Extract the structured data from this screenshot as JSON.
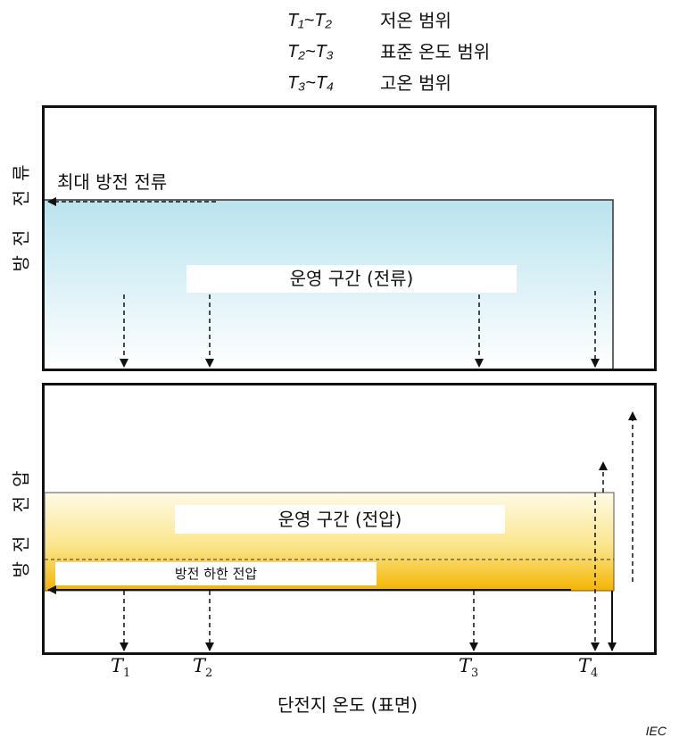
{
  "legend": [
    {
      "range": "T₁~T₂",
      "label": "저온 범위"
    },
    {
      "range": "T₂~T₃",
      "label": "표준 온도 범위"
    },
    {
      "range": "T₃~T₄",
      "label": "고온 범위"
    }
  ],
  "top_panel": {
    "ylabel": "방전 전류",
    "max_label": "최대 방전 전류",
    "region_label": "운영 구간 (전류)"
  },
  "bottom_panel": {
    "ylabel": "방전 전압",
    "region_label": "운영 구간 (전압)",
    "lower_limit_label": "방전 하한 전압"
  },
  "x_axis": {
    "ticks": [
      {
        "name": "T",
        "sub": "1"
      },
      {
        "name": "T",
        "sub": "2"
      },
      {
        "name": "T",
        "sub": "3"
      },
      {
        "name": "T",
        "sub": "4"
      }
    ],
    "label": "단전지 온도 (표면)"
  },
  "source": "IEC",
  "colors": {
    "current_region": "#bfe6f0",
    "voltage_region_top": "#fffbe0",
    "voltage_region_bottom": "#f5b800"
  }
}
